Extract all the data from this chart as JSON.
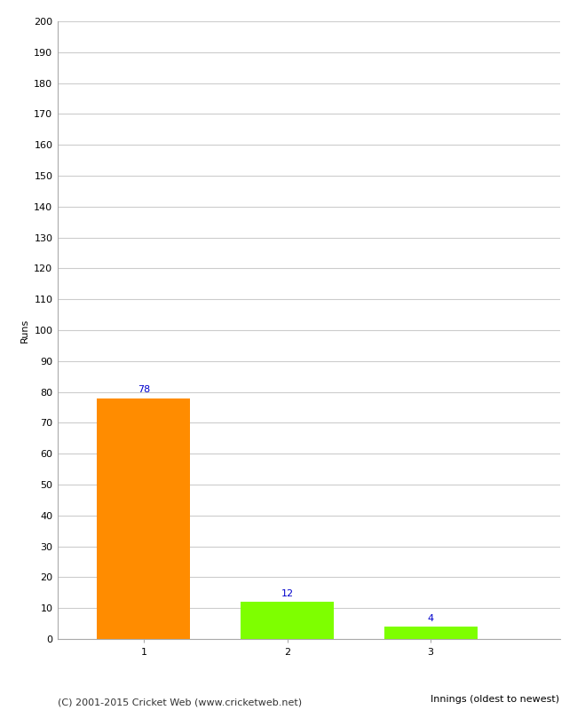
{
  "categories": [
    "1",
    "2",
    "3"
  ],
  "values": [
    78,
    12,
    4
  ],
  "bar_colors": [
    "#ff8c00",
    "#7eff00",
    "#7eff00"
  ],
  "ylabel": "Runs",
  "xlabel": "Innings (oldest to newest)",
  "ylim": [
    0,
    200
  ],
  "yticks": [
    0,
    10,
    20,
    30,
    40,
    50,
    60,
    70,
    80,
    90,
    100,
    110,
    120,
    130,
    140,
    150,
    160,
    170,
    180,
    190,
    200
  ],
  "label_color": "#0000cc",
  "label_fontsize": 8,
  "axis_fontsize": 8,
  "tick_fontsize": 8,
  "footer": "(C) 2001-2015 Cricket Web (www.cricketweb.net)",
  "footer_fontsize": 8,
  "background_color": "#ffffff",
  "grid_color": "#cccccc"
}
